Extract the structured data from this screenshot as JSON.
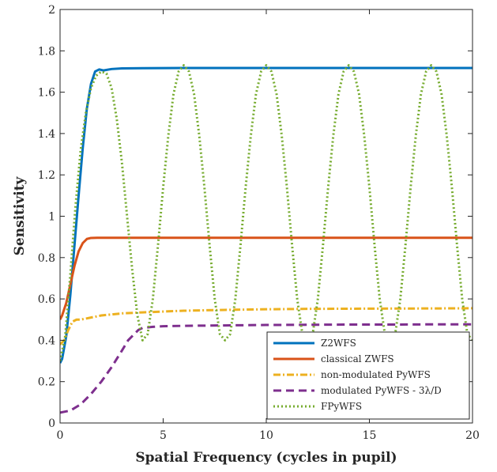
{
  "chart_data": {
    "type": "line",
    "title": "",
    "xlabel": "Spatial Frequency (cycles in pupil)",
    "ylabel": "Sensitivity",
    "xlim": [
      0,
      20
    ],
    "ylim": [
      0,
      2
    ],
    "xticks": [
      "0",
      "5",
      "10",
      "15",
      "20"
    ],
    "yticks": [
      "0",
      "0.2",
      "0.4",
      "0.6",
      "0.8",
      "1",
      "1.2",
      "1.4",
      "1.6",
      "1.8",
      "2"
    ],
    "grid": false,
    "legend_position": "bottom-right",
    "series": [
      {
        "name": "Z2WFS",
        "color": "#0072BD",
        "style": "solid",
        "x": [
          0,
          0.1,
          0.3,
          0.5,
          0.7,
          0.9,
          1.1,
          1.3,
          1.5,
          1.7,
          1.9,
          2.1,
          2.5,
          3,
          4,
          6,
          8,
          10,
          12,
          14,
          16,
          18,
          20
        ],
        "y": [
          0.29,
          0.31,
          0.42,
          0.62,
          0.86,
          1.1,
          1.33,
          1.52,
          1.64,
          1.7,
          1.71,
          1.705,
          1.712,
          1.715,
          1.716,
          1.717,
          1.717,
          1.717,
          1.717,
          1.717,
          1.717,
          1.717,
          1.717
        ]
      },
      {
        "name": "classical ZWFS",
        "color": "#D95319",
        "style": "solid",
        "x": [
          0,
          0.1,
          0.3,
          0.5,
          0.7,
          0.9,
          1.1,
          1.3,
          1.5,
          1.8,
          2.2,
          3,
          5,
          10,
          15,
          20
        ],
        "y": [
          0.5,
          0.52,
          0.58,
          0.67,
          0.76,
          0.83,
          0.87,
          0.89,
          0.895,
          0.896,
          0.896,
          0.896,
          0.896,
          0.896,
          0.896,
          0.896
        ]
      },
      {
        "name": "non-modulated PyWFS",
        "color": "#EDB120",
        "style": "dashdot",
        "x": [
          0,
          0.2,
          0.4,
          0.6,
          0.8,
          1,
          1.5,
          2,
          3,
          4,
          6,
          8,
          10,
          12,
          15,
          18,
          20
        ],
        "y": [
          0.38,
          0.4,
          0.45,
          0.49,
          0.5,
          0.5,
          0.51,
          0.52,
          0.53,
          0.535,
          0.543,
          0.547,
          0.55,
          0.552,
          0.553,
          0.554,
          0.555
        ]
      },
      {
        "name": "modulated PyWFS - 3λ/D",
        "color": "#7E2F8E",
        "style": "dashed",
        "x": [
          0,
          0.5,
          1,
          1.5,
          2,
          2.5,
          3,
          3.3,
          3.6,
          3.8,
          4,
          4.5,
          5,
          6,
          8,
          10,
          12,
          14,
          16,
          18,
          20
        ],
        "y": [
          0.05,
          0.06,
          0.09,
          0.14,
          0.2,
          0.27,
          0.35,
          0.4,
          0.43,
          0.45,
          0.46,
          0.465,
          0.468,
          0.47,
          0.472,
          0.474,
          0.475,
          0.476,
          0.476,
          0.477,
          0.477
        ]
      },
      {
        "name": "FPyWFS",
        "color": "#77AC30",
        "style": "dotted",
        "x": [
          0,
          0.25,
          0.5,
          0.75,
          1,
          1.25,
          1.5,
          1.75,
          2,
          2.25,
          2.5,
          2.75,
          3,
          3.25,
          3.5,
          3.75,
          4,
          4.25,
          4.5,
          4.75,
          5,
          5.25,
          5.5,
          5.75,
          6,
          6.25,
          6.5,
          6.75,
          7,
          7.25,
          7.5,
          7.75,
          8,
          8.25,
          8.5,
          8.75,
          9,
          9.25,
          9.5,
          9.75,
          10,
          10.25,
          10.5,
          10.75,
          11,
          11.25,
          11.5,
          11.75,
          12,
          12.25,
          12.5,
          12.75,
          13,
          13.25,
          13.5,
          13.75,
          14,
          14.25,
          14.5,
          14.75,
          15,
          15.25,
          15.5,
          15.75,
          16,
          16.25,
          16.5,
          16.75,
          17,
          17.25,
          17.5,
          17.75,
          18,
          18.25,
          18.5,
          18.75,
          19,
          19.25,
          19.5,
          19.75,
          20
        ],
        "y": [
          0.3,
          0.42,
          0.72,
          1.05,
          1.32,
          1.5,
          1.62,
          1.68,
          1.7,
          1.69,
          1.62,
          1.47,
          1.26,
          1.0,
          0.74,
          0.52,
          0.4,
          0.43,
          0.6,
          0.86,
          1.14,
          1.39,
          1.59,
          1.7,
          1.73,
          1.7,
          1.59,
          1.39,
          1.14,
          0.86,
          0.6,
          0.43,
          0.4,
          0.43,
          0.6,
          0.86,
          1.14,
          1.39,
          1.59,
          1.7,
          1.73,
          1.7,
          1.59,
          1.39,
          1.14,
          0.86,
          0.6,
          0.43,
          0.4,
          0.43,
          0.6,
          0.86,
          1.14,
          1.39,
          1.59,
          1.7,
          1.73,
          1.7,
          1.59,
          1.39,
          1.14,
          0.86,
          0.6,
          0.43,
          0.4,
          0.43,
          0.6,
          0.86,
          1.14,
          1.39,
          1.59,
          1.7,
          1.73,
          1.7,
          1.59,
          1.39,
          1.14,
          0.86,
          0.6,
          0.43,
          0.4
        ]
      }
    ]
  }
}
